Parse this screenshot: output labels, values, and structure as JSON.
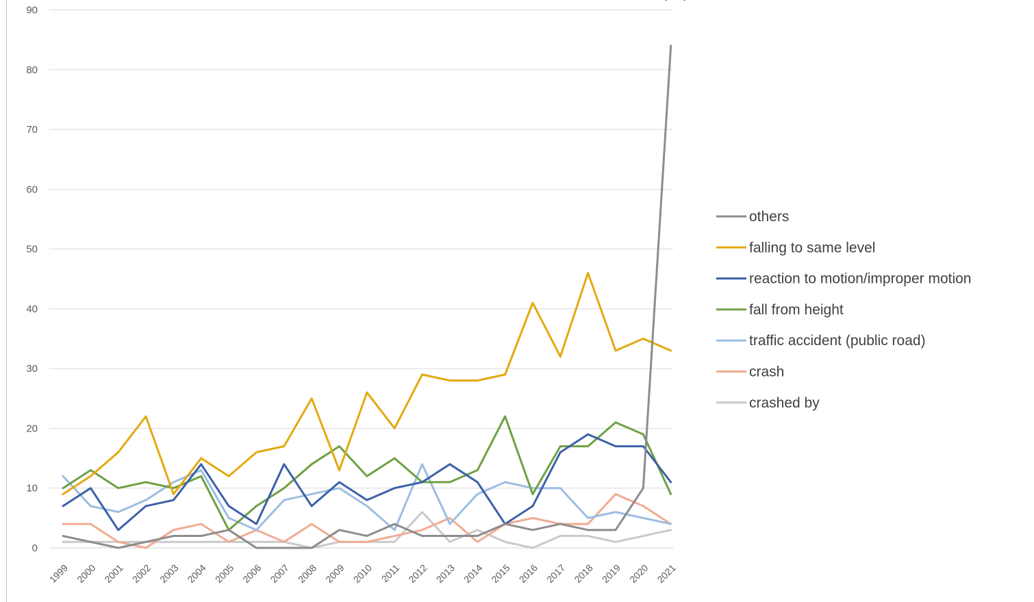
{
  "chart_data": {
    "type": "line",
    "title": "… (…)",
    "xlabel": "",
    "ylabel": "",
    "ylim": [
      0,
      90
    ],
    "ytick_step": 10,
    "grid": true,
    "legend_position": "right",
    "categories": [
      "1999",
      "2000",
      "2001",
      "2002",
      "2003",
      "2004",
      "2005",
      "2006",
      "2007",
      "2008",
      "2009",
      "2010",
      "2011",
      "2012",
      "2013",
      "2014",
      "2015",
      "2016",
      "2017",
      "2018",
      "2019",
      "2020",
      "2021"
    ],
    "series": [
      {
        "name": "others",
        "color": "#a5a5a5",
        "stroke": "#8c8c8c",
        "values": [
          2,
          1,
          0,
          1,
          2,
          2,
          3,
          0,
          0,
          0,
          3,
          2,
          4,
          2,
          2,
          2,
          4,
          3,
          4,
          3,
          3,
          10,
          84
        ]
      },
      {
        "name": "falling to same level",
        "color": "#e3a90f",
        "values": [
          9,
          12,
          16,
          22,
          9,
          15,
          12,
          16,
          17,
          25,
          13,
          26,
          20,
          29,
          28,
          28,
          29,
          41,
          32,
          46,
          33,
          35,
          33
        ]
      },
      {
        "name": "reaction to motion/improper motion",
        "color": "#3d60a8",
        "values": [
          7,
          10,
          3,
          7,
          8,
          14,
          7,
          4,
          14,
          7,
          11,
          8,
          10,
          11,
          14,
          11,
          4,
          7,
          16,
          19,
          17,
          17,
          11
        ]
      },
      {
        "name": "fall from height",
        "color": "#6fa043",
        "values": [
          10,
          13,
          10,
          11,
          10,
          12,
          3,
          7,
          10,
          14,
          17,
          12,
          15,
          11,
          11,
          13,
          22,
          9,
          17,
          17,
          21,
          19,
          9
        ]
      },
      {
        "name": "traffic accident (public road)",
        "color": "#9cbde2",
        "values": [
          12,
          7,
          6,
          8,
          11,
          13,
          5,
          3,
          8,
          9,
          10,
          7,
          3,
          14,
          4,
          9,
          11,
          10,
          10,
          5,
          6,
          5,
          4
        ]
      },
      {
        "name": "crash",
        "color": "#f0ab91",
        "values": [
          4,
          4,
          1,
          0,
          3,
          4,
          1,
          3,
          1,
          4,
          1,
          1,
          2,
          3,
          5,
          1,
          4,
          5,
          4,
          4,
          9,
          7,
          4
        ]
      },
      {
        "name": "crashed by",
        "color": "#c9c9c9",
        "values": [
          1,
          1,
          1,
          1,
          1,
          1,
          1,
          1,
          1,
          0,
          1,
          1,
          1,
          6,
          1,
          3,
          1,
          0,
          2,
          2,
          1,
          2,
          3
        ]
      }
    ],
    "draw_order": [
      6,
      5,
      4,
      3,
      2,
      1,
      0
    ]
  }
}
